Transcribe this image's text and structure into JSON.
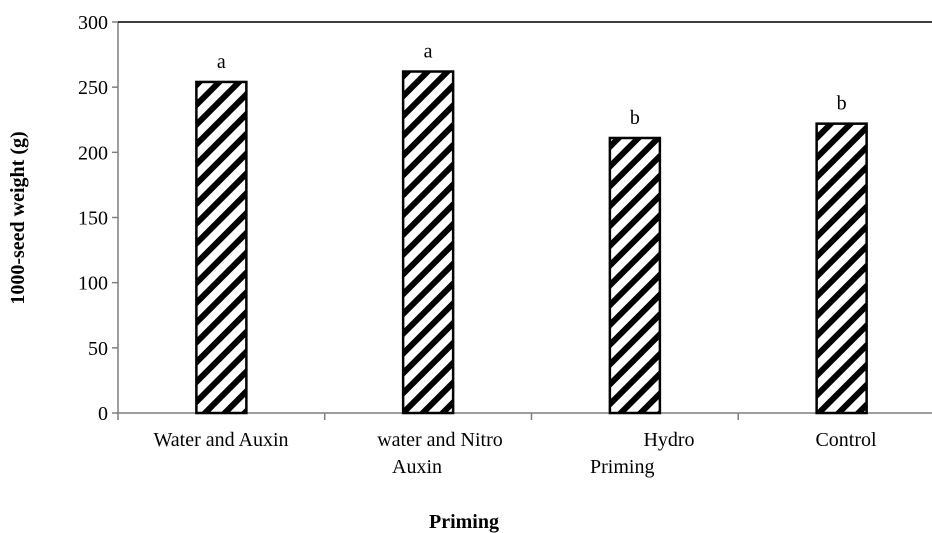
{
  "chart_data": {
    "type": "bar",
    "categories": [
      [
        "Water  and Auxin"
      ],
      [
        "water and Nitro",
        "Auxin"
      ],
      [
        "Hydro",
        "Priming"
      ],
      [
        "Control"
      ]
    ],
    "values": [
      254,
      262,
      211,
      222
    ],
    "data_labels": [
      "a",
      "a",
      "b",
      "b"
    ],
    "xlabel": "Priming",
    "ylabel": "1000-seed weight (g)",
    "ylim": [
      0,
      300
    ],
    "yticks": [
      0,
      50,
      100,
      150,
      200,
      250,
      300
    ],
    "grid": false,
    "legend": "none",
    "bar_fill": "diagonal-hatch",
    "colors": {
      "bar_stroke": "#000000",
      "hatch": "#000000",
      "bar_background": "#ffffff",
      "axis": "#7f7f7f"
    }
  }
}
